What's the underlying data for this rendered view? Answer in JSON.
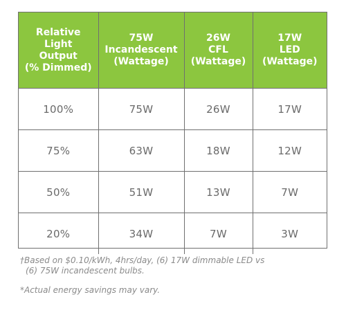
{
  "table": {
    "headers": [
      [
        "Relative",
        "Light",
        "Output",
        "(% Dimmed)"
      ],
      [
        "75W",
        "Incandescent",
        "(Wattage)"
      ],
      [
        "26W",
        "CFL",
        "(Wattage)"
      ],
      [
        "17W",
        "LED",
        "(Wattage)"
      ]
    ],
    "rows": [
      [
        "100%",
        "75W",
        "26W",
        "17W"
      ],
      [
        "75%",
        "63W",
        "18W",
        "12W"
      ],
      [
        "50%",
        "51W",
        "13W",
        "7W"
      ],
      [
        "20%",
        "34W",
        "7W",
        "3W"
      ]
    ]
  },
  "footnotes": {
    "basis_line1": "†Based on $0.10/kWh, 4hrs/day, (6) 17W dimmable LED vs",
    "basis_line2": "(6) 75W incandescent bulbs.",
    "savings_disclaimer": "*Actual energy savings may vary."
  },
  "colors": {
    "header_background": "#8cc63f",
    "header_text": "#ffffff",
    "grid_lines": "#6f6f6f",
    "cell_text": "#6a6a6a"
  }
}
